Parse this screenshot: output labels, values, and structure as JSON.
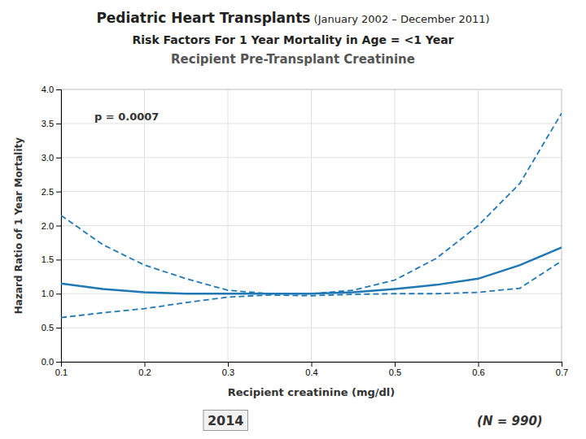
{
  "chart_data": {
    "type": "line",
    "title": [
      "Pediatric Heart Transplants",
      " (January 2002 – December 2011)"
    ],
    "subtitle": [
      "Risk Factors For 1 Year Mortality in Age = <1 Year",
      "Recipient Pre-Transplant Creatinine"
    ],
    "x_label": "Recipient creatinine (mg/dl)",
    "y_label": "Hazard Ratio of 1 Year Mortality",
    "annotations": [
      {
        "text": "p = 0.0007",
        "x": 0.14,
        "y": 3.55
      },
      {
        "text": "(N = 990)"
      },
      {
        "text": "2014"
      }
    ],
    "x": [
      0.1,
      0.15,
      0.2,
      0.25,
      0.3,
      0.35,
      0.4,
      0.45,
      0.5,
      0.55,
      0.6,
      0.65,
      0.7
    ],
    "series": [
      {
        "line_style": "dashed",
        "values": [
          2.15,
          1.72,
          1.42,
          1.22,
          1.05,
          1.0,
          1.0,
          1.05,
          1.2,
          1.52,
          2.0,
          2.62,
          3.65
        ]
      },
      {
        "line_style": "solid",
        "values": [
          1.15,
          1.07,
          1.02,
          1.0,
          1.0,
          1.0,
          1.0,
          1.02,
          1.07,
          1.13,
          1.22,
          1.42,
          1.68
        ]
      },
      {
        "line_style": "dashed",
        "values": [
          0.65,
          0.72,
          0.78,
          0.87,
          0.95,
          0.98,
          0.97,
          0.99,
          1.0,
          1.0,
          1.02,
          1.08,
          1.48
        ]
      }
    ],
    "xlim": [
      0.1,
      0.7
    ],
    "ylim": [
      0.0,
      4.0
    ],
    "xticks": [
      0.1,
      0.2,
      0.3,
      0.4,
      0.5,
      0.6,
      0.7
    ],
    "yticks": [
      {
        "value": 0.0,
        "label": "0.0"
      },
      0.5,
      {
        "value": 1.0,
        "label": "1.0"
      },
      1.5,
      {
        "value": 2.0,
        "label": "2.0"
      },
      2.5,
      {
        "value": 3.0,
        "label": "3.0"
      },
      3.5,
      {
        "value": 4.0,
        "label": "4.0"
      }
    ],
    "grid": true
  }
}
